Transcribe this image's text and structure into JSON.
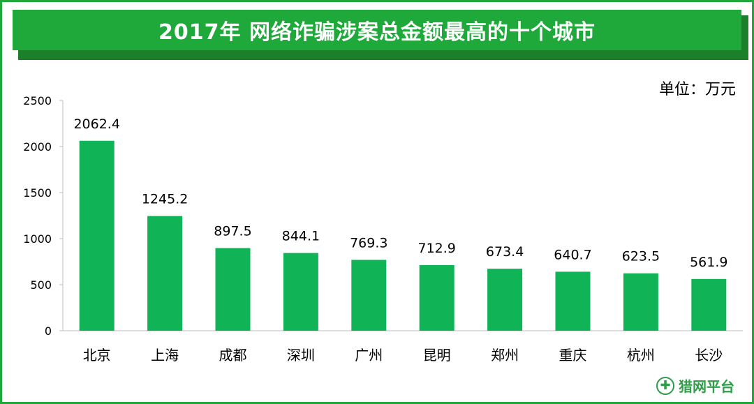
{
  "title": "2017年 网络诈骗涉案总金额最高的十个城市",
  "unit_label": "单位：万元",
  "watermark": {
    "text": "猎网平台",
    "icon": "plus-circle-icon"
  },
  "colors": {
    "bar": "#11b357",
    "banner": "#1fa93a",
    "frame": "#21a83b"
  },
  "chart_data": {
    "type": "bar",
    "title": "2017年 网络诈骗涉案总金额最高的十个城市",
    "xlabel": "",
    "ylabel": "",
    "unit": "单位：万元",
    "ylim": [
      0,
      2500
    ],
    "yticks": [
      0,
      500,
      1000,
      1500,
      2000,
      2500
    ],
    "grid": false,
    "legend": "none",
    "categories": [
      "北京",
      "上海",
      "成都",
      "深圳",
      "广州",
      "昆明",
      "郑州",
      "重庆",
      "杭州",
      "长沙"
    ],
    "values": [
      2062.4,
      1245.2,
      897.5,
      844.1,
      769.3,
      712.9,
      673.4,
      640.7,
      623.5,
      561.9
    ],
    "data_labels": [
      "2062.4",
      "1245.2",
      "897.5",
      "844.1",
      "769.3",
      "712.9",
      "673.4",
      "640.7",
      "623.5",
      "561.9"
    ]
  }
}
